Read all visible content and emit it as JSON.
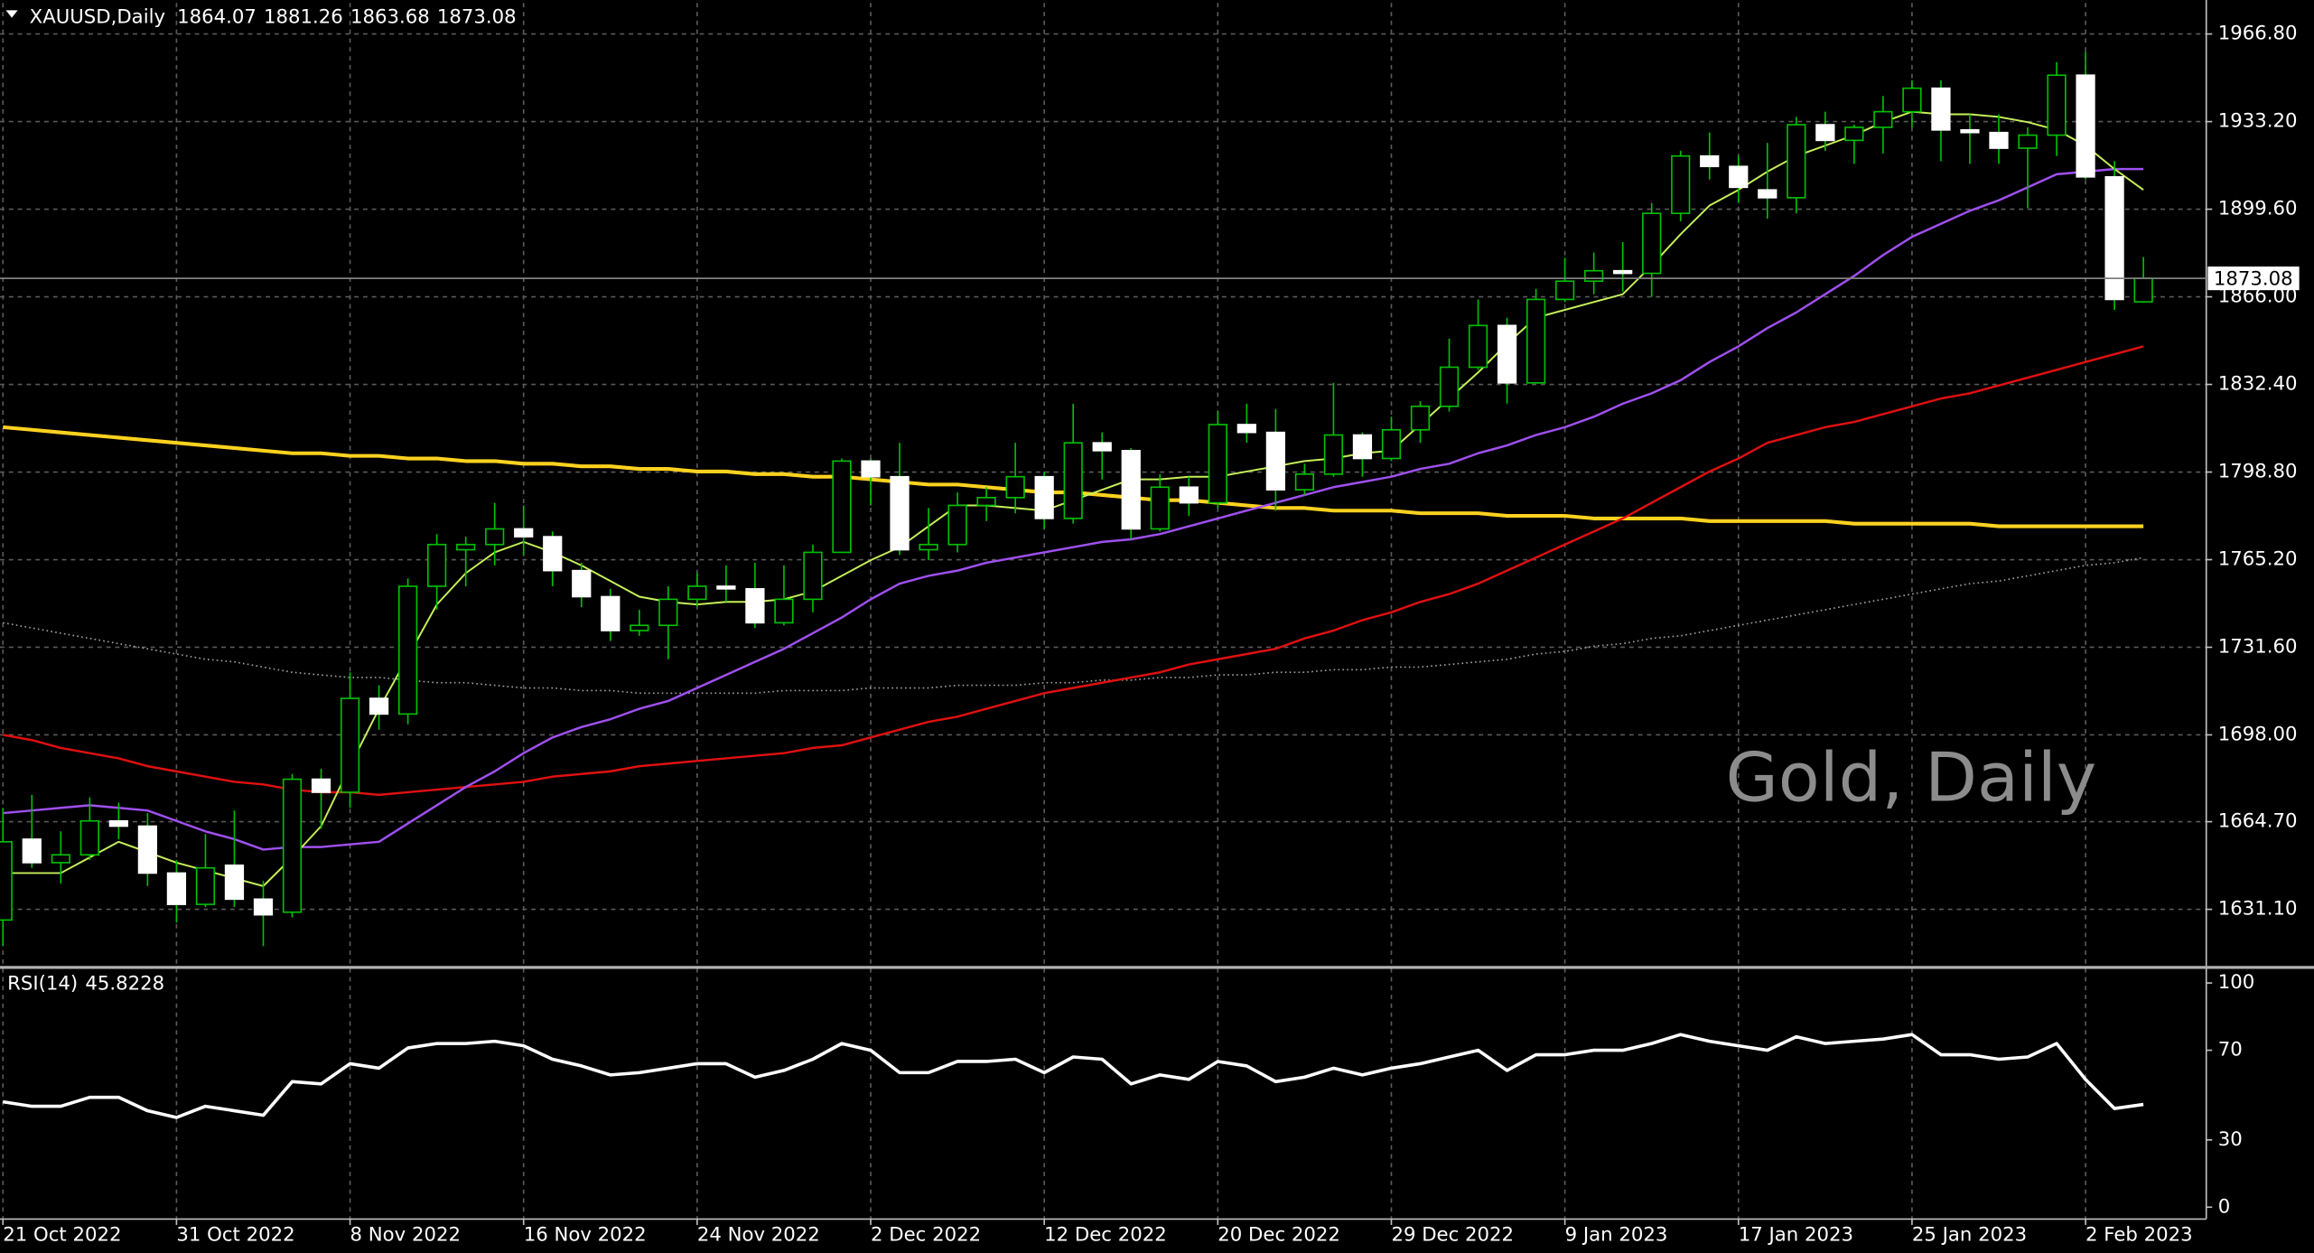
{
  "chart_data": {
    "type": "candlestick",
    "symbol": "XAUUSD,Daily",
    "watermark": "Gold, Daily",
    "categories": [
      "21 Oct 2022",
      null,
      null,
      null,
      null,
      null,
      "31 Oct 2022",
      null,
      null,
      null,
      null,
      null,
      "8 Nov 2022",
      null,
      null,
      null,
      null,
      null,
      "16 Nov 2022",
      null,
      null,
      null,
      null,
      null,
      "24 Nov 2022",
      null,
      null,
      null,
      null,
      null,
      "2 Dec 2022",
      null,
      null,
      null,
      null,
      null,
      "12 Dec 2022",
      null,
      null,
      null,
      null,
      null,
      "20 Dec 2022",
      null,
      null,
      null,
      null,
      null,
      "29 Dec 2022",
      null,
      null,
      null,
      null,
      null,
      "9 Jan 2023",
      null,
      null,
      null,
      null,
      null,
      "17 Jan 2023",
      null,
      null,
      null,
      null,
      null,
      "25 Jan 2023",
      null,
      null,
      null,
      null,
      null,
      "2 Feb 2023",
      null,
      null
    ],
    "open": [
      1627,
      1658,
      1649,
      1652,
      1665,
      1663,
      1645,
      1633,
      1648,
      1635,
      1630,
      1681,
      1676,
      1712,
      1706,
      1755,
      1769,
      1771,
      1777,
      1774,
      1761,
      1751,
      1738,
      1740,
      1750,
      1755,
      1754,
      1741,
      1750,
      1768,
      1803,
      1797,
      1769,
      1771,
      1786,
      1789,
      1797,
      1781,
      1810,
      1807,
      1777,
      1793,
      1787,
      1817,
      1814,
      1792,
      1798,
      1813,
      1804,
      1815,
      1824,
      1839,
      1855,
      1833,
      1865,
      1872,
      1876,
      1875,
      1898,
      1920,
      1916,
      1907,
      1904,
      1932,
      1926,
      1931,
      1937,
      1946,
      1930,
      1929,
      1923,
      1928,
      1951,
      1912,
      1864.07
    ],
    "high": [
      1670,
      1675,
      1661,
      1674,
      1672,
      1668,
      1650,
      1660,
      1669,
      1642,
      1683,
      1685,
      1722,
      1717,
      1758,
      1775,
      1774,
      1787,
      1786,
      1776,
      1764,
      1754,
      1746,
      1755,
      1760,
      1763,
      1764,
      1763,
      1771,
      1804,
      1804,
      1810,
      1785,
      1791,
      1793,
      1810,
      1799,
      1825,
      1814,
      1808,
      1798,
      1797,
      1822,
      1825,
      1823,
      1802,
      1833,
      1814,
      1820,
      1826,
      1850,
      1865,
      1858,
      1869,
      1881,
      1883,
      1887,
      1902,
      1922,
      1929,
      1920,
      1925,
      1935,
      1937,
      1932,
      1943,
      1949,
      1949,
      1936,
      1936,
      1931,
      1956,
      1960,
      1918,
      1881.26
    ],
    "low": [
      1617,
      1647,
      1641,
      1650,
      1658,
      1640,
      1626,
      1632,
      1632,
      1617,
      1628,
      1662,
      1670,
      1700,
      1702,
      1746,
      1755,
      1763,
      1767,
      1755,
      1747,
      1734,
      1736,
      1727,
      1747,
      1749,
      1739,
      1740,
      1745,
      1768,
      1786,
      1767,
      1765,
      1768,
      1780,
      1783,
      1777,
      1779,
      1796,
      1773,
      1776,
      1782,
      1785,
      1810,
      1784,
      1790,
      1797,
      1797,
      1803,
      1810,
      1822,
      1838,
      1825,
      1833,
      1864,
      1867,
      1868,
      1866,
      1895,
      1911,
      1902,
      1896,
      1898,
      1922,
      1917,
      1921,
      1931,
      1918,
      1917,
      1917,
      1900,
      1920,
      1911,
      1861,
      1863.68
    ],
    "close": [
      1657,
      1649,
      1652,
      1665,
      1663,
      1645,
      1633,
      1647,
      1635,
      1629,
      1681,
      1676,
      1712,
      1706,
      1755,
      1771,
      1771,
      1777,
      1774,
      1761,
      1751,
      1738,
      1740,
      1750,
      1755,
      1754,
      1741,
      1750,
      1768,
      1803,
      1797,
      1769,
      1771,
      1786,
      1789,
      1797,
      1781,
      1810,
      1807,
      1777,
      1793,
      1787,
      1817,
      1814,
      1792,
      1798,
      1813,
      1804,
      1815,
      1824,
      1839,
      1855,
      1833,
      1865,
      1872,
      1876,
      1875,
      1898,
      1920,
      1916,
      1908,
      1904,
      1932,
      1926,
      1931,
      1937,
      1946,
      1930,
      1929,
      1923,
      1928,
      1951,
      1912,
      1865,
      1873.08
    ],
    "up_color": "#00c000",
    "down_color": "#ffffff",
    "overlays": [
      {
        "color": "#a0a0a0",
        "width": 1,
        "style": "dotted",
        "values": [
          1741,
          1739,
          1737,
          1735,
          1733,
          1731,
          1729,
          1727,
          1726,
          1724,
          1722,
          1721,
          1720,
          1720,
          1719,
          1718,
          1718,
          1717,
          1716,
          1716,
          1715,
          1715,
          1714,
          1714,
          1714,
          1714,
          1714,
          1715,
          1715,
          1715,
          1716,
          1716,
          1716,
          1717,
          1717,
          1717,
          1718,
          1718,
          1719,
          1719,
          1720,
          1720,
          1721,
          1721,
          1722,
          1722,
          1723,
          1723,
          1724,
          1724,
          1725,
          1726,
          1727,
          1729,
          1730,
          1732,
          1733,
          1735,
          1736,
          1738,
          1740,
          1742,
          1744,
          1746,
          1748,
          1750,
          1752,
          1754,
          1756,
          1757,
          1759,
          1761,
          1763,
          1764,
          1766
        ]
      },
      {
        "color": "#ffd21f",
        "width": 2.5,
        "style": "solid",
        "values": [
          1816,
          1815,
          1814,
          1813,
          1812,
          1811,
          1810,
          1809,
          1808,
          1807,
          1806,
          1806,
          1805,
          1805,
          1804,
          1804,
          1803,
          1803,
          1802,
          1802,
          1801,
          1801,
          1800,
          1800,
          1799,
          1799,
          1798,
          1798,
          1797,
          1797,
          1796,
          1795,
          1794,
          1794,
          1793,
          1792,
          1791,
          1791,
          1790,
          1789,
          1788,
          1788,
          1787,
          1786,
          1785,
          1785,
          1784,
          1784,
          1784,
          1783,
          1783,
          1783,
          1782,
          1782,
          1782,
          1781,
          1781,
          1781,
          1781,
          1780,
          1780,
          1780,
          1780,
          1780,
          1779,
          1779,
          1779,
          1779,
          1779,
          1778,
          1778,
          1778,
          1778,
          1778,
          1778
        ]
      },
      {
        "color": "#e01010",
        "width": 1.5,
        "style": "solid",
        "values": [
          1698,
          1696,
          1693,
          1691,
          1689,
          1686,
          1684,
          1682,
          1680,
          1679,
          1677,
          1676,
          1676,
          1675,
          1676,
          1677,
          1678,
          1679,
          1680,
          1682,
          1683,
          1684,
          1686,
          1687,
          1688,
          1689,
          1690,
          1691,
          1693,
          1694,
          1697,
          1700,
          1703,
          1705,
          1708,
          1711,
          1714,
          1716,
          1718,
          1720,
          1722,
          1725,
          1727,
          1729,
          1731,
          1735,
          1738,
          1742,
          1745,
          1749,
          1752,
          1756,
          1761,
          1766,
          1771,
          1776,
          1781,
          1787,
          1793,
          1799,
          1804,
          1810,
          1813,
          1816,
          1818,
          1821,
          1824,
          1827,
          1829,
          1832,
          1835,
          1838,
          1841,
          1844,
          1847
        ]
      },
      {
        "color": "#a050f0",
        "width": 1.5,
        "style": "solid",
        "values": [
          1668,
          1669,
          1670,
          1671,
          1670,
          1669,
          1665,
          1661,
          1658,
          1654,
          1655,
          1655,
          1656,
          1657,
          1664,
          1671,
          1678,
          1684,
          1691,
          1697,
          1701,
          1704,
          1708,
          1711,
          1716,
          1721,
          1726,
          1731,
          1737,
          1743,
          1750,
          1756,
          1759,
          1761,
          1764,
          1766,
          1768,
          1770,
          1772,
          1773,
          1775,
          1778,
          1781,
          1784,
          1787,
          1790,
          1793,
          1795,
          1797,
          1800,
          1802,
          1806,
          1809,
          1813,
          1816,
          1820,
          1825,
          1829,
          1834,
          1841,
          1847,
          1854,
          1860,
          1867,
          1874,
          1882,
          1889,
          1894,
          1899,
          1903,
          1908,
          1913,
          1914,
          1915,
          1915
        ]
      },
      {
        "color": "#c6f05a",
        "width": 1.2,
        "style": "solid",
        "values": [
          1645,
          1645,
          1645,
          1651,
          1657,
          1653,
          1649,
          1646,
          1643,
          1640,
          1651,
          1663,
          1686,
          1708,
          1728,
          1748,
          1760,
          1768,
          1772,
          1768,
          1763,
          1757,
          1751,
          1749,
          1748,
          1749,
          1749,
          1750,
          1753,
          1759,
          1765,
          1770,
          1778,
          1786,
          1786,
          1785,
          1784,
          1788,
          1792,
          1796,
          1796,
          1797,
          1797,
          1799,
          1801,
          1803,
          1804,
          1806,
          1807,
          1817,
          1827,
          1837,
          1848,
          1858,
          1861,
          1864,
          1867,
          1878,
          1890,
          1901,
          1907,
          1914,
          1920,
          1924,
          1928,
          1933,
          1937,
          1936,
          1936,
          1935,
          1933,
          1930,
          1924,
          1915,
          1907
        ]
      }
    ],
    "ylim": [
      1609.1,
      1978.7
    ],
    "yticks": [
      {
        "value": 1966.8,
        "label": "1966.80"
      },
      {
        "value": 1933.2,
        "label": "1933.20"
      },
      {
        "value": 1899.6,
        "label": "1899.60"
      },
      {
        "value": 1866,
        "label": "1866.00"
      },
      {
        "value": 1832.4,
        "label": "1832.40"
      },
      {
        "value": 1798.8,
        "label": "1798.80"
      },
      {
        "value": 1765.2,
        "label": "1765.20"
      },
      {
        "value": 1731.6,
        "label": "1731.60"
      },
      {
        "value": 1698,
        "label": "1698.00"
      },
      {
        "value": 1664.7,
        "label": "1664.70"
      },
      {
        "value": 1631.1,
        "label": "1631.10"
      }
    ],
    "grid": true,
    "indicator": {
      "type": "line",
      "name": "RSI(14)",
      "color": "#ffffff",
      "values": [
        47,
        45,
        45,
        49,
        49,
        43,
        40,
        45,
        43,
        41,
        56,
        55,
        64,
        62,
        71,
        73,
        73,
        74,
        72,
        66,
        63,
        59,
        60,
        62,
        64,
        64,
        58,
        61,
        66,
        73,
        70,
        60,
        60,
        65,
        65,
        66,
        60,
        67,
        66,
        55,
        59,
        57,
        65,
        63,
        56,
        58,
        62,
        59,
        62,
        64,
        67,
        70,
        61,
        68,
        68,
        70,
        70,
        73,
        77,
        74,
        72,
        70,
        76,
        73,
        74,
        75,
        77,
        68,
        68,
        66,
        67,
        73,
        57,
        44,
        45.8228
      ],
      "ylim": [
        -5.3,
        105.3
      ],
      "yticks": [
        100,
        70,
        30,
        0
      ]
    }
  }
}
